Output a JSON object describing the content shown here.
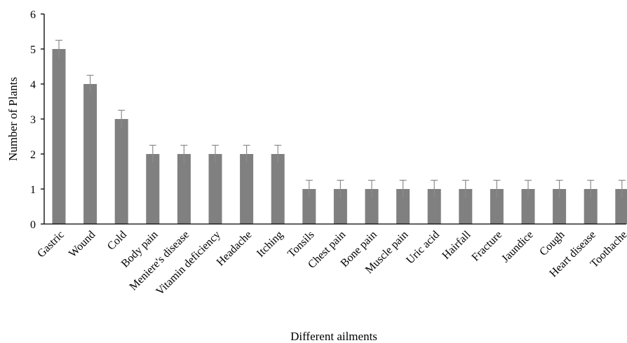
{
  "chart_data": {
    "type": "bar",
    "title": "",
    "xlabel": "Different ailments",
    "ylabel": "Number of Plants",
    "ylim": [
      0,
      6
    ],
    "yticks": [
      0,
      1,
      2,
      3,
      4,
      5,
      6
    ],
    "grid": false,
    "categories": [
      "Gastric",
      "Wound",
      "Cold",
      "Body pain",
      "Meniere's disease",
      "Vitamin deficiency",
      "Headache",
      "Itching",
      "Tonsils",
      "Chest pain",
      "Bone pain",
      "Muscle pain",
      "Uric acid",
      "Hairfall",
      "Fracture",
      "Jaundice",
      "Cough",
      "Heart disease",
      "Toothache"
    ],
    "values": [
      5,
      4,
      3,
      2,
      2,
      2,
      2,
      2,
      1,
      1,
      1,
      1,
      1,
      1,
      1,
      1,
      1,
      1,
      1
    ],
    "error": [
      0.25,
      0.25,
      0.25,
      0.25,
      0.25,
      0.25,
      0.25,
      0.25,
      0.25,
      0.25,
      0.25,
      0.25,
      0.25,
      0.25,
      0.25,
      0.25,
      0.25,
      0.25,
      0.25
    ],
    "colors": {
      "bar": "#808080",
      "error": "#8c8c8c",
      "axis": "#000000"
    }
  }
}
